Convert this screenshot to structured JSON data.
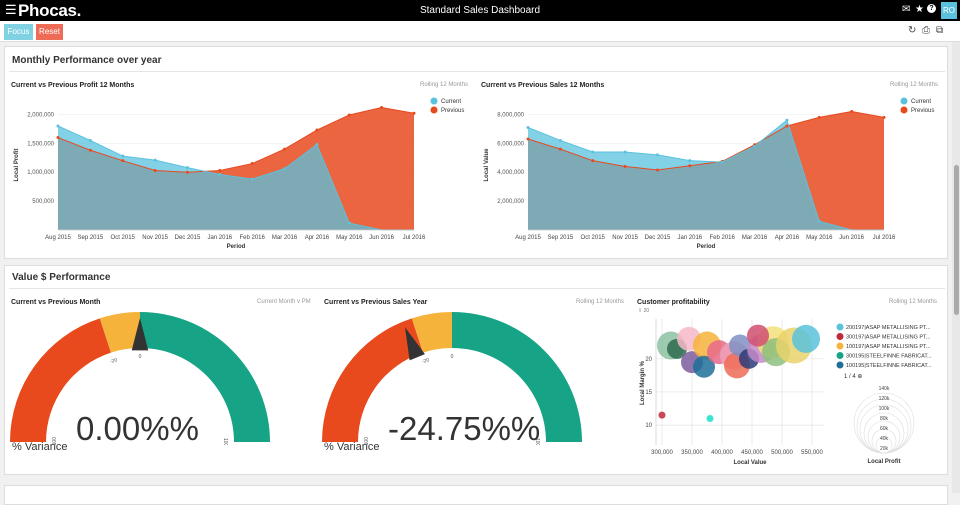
{
  "app": {
    "logo": "Phocas.",
    "title": "Standard Sales Dashboard",
    "menu_icon": "hamburger-icon",
    "avatar": "RO",
    "icons": [
      "chat-icon",
      "star-icon",
      "help-icon",
      "gear-icon"
    ]
  },
  "toolbar": {
    "focus_label": "Focus",
    "reset_label": "Reset",
    "focus_color": "#80d2e3",
    "reset_color": "#ee6b56",
    "icons": [
      "refresh-icon",
      "print-icon",
      "copy-icon"
    ]
  },
  "colors": {
    "current": "#5ac2dd",
    "previous": "#e84a1e",
    "gauge_red": "#e84a1e",
    "gauge_yellow": "#f6b33b",
    "gauge_green": "#17a486"
  },
  "section1": {
    "title": "Monthly Performance over year"
  },
  "section2": {
    "title": "Value $ Performance"
  },
  "chart_data": [
    {
      "type": "area",
      "title": "Current vs Previous Profit 12 Months",
      "subtitle": "Rolling 12 Months",
      "xlabel": "Period",
      "ylabel": "Local Profit",
      "categories": [
        "Aug 2015",
        "Sep 2015",
        "Oct 2015",
        "Nov 2015",
        "Dec 2015",
        "Jan 2016",
        "Feb 2016",
        "Mar 2016",
        "Apr 2016",
        "May 2016",
        "Jun 2016",
        "Jul 2016"
      ],
      "yticks": [
        "500,000",
        "1,000,000",
        "1,500,000",
        "2,000,000"
      ],
      "ytick_values": [
        500000,
        1000000,
        1500000,
        2000000
      ],
      "ylim": [
        0,
        2250000
      ],
      "legend": "top-right",
      "series": [
        {
          "name": "Current",
          "values": [
            1800000,
            1550000,
            1280000,
            1210000,
            1080000,
            960000,
            880000,
            1060000,
            1480000,
            120000,
            0,
            0
          ]
        },
        {
          "name": "Previous",
          "values": [
            1600000,
            1380000,
            1200000,
            1030000,
            1000000,
            1030000,
            1150000,
            1400000,
            1730000,
            1990000,
            2120000,
            2020000
          ]
        }
      ]
    },
    {
      "type": "area",
      "title": "Current vs Previous Sales 12 Months",
      "subtitle": "Rolling 12 Months",
      "xlabel": "Period",
      "ylabel": "Local Value",
      "categories": [
        "Aug 2015",
        "Sep 2015",
        "Oct 2015",
        "Nov 2015",
        "Dec 2015",
        "Jan 2016",
        "Feb 2016",
        "Mar 2016",
        "Apr 2016",
        "May 2016",
        "Jun 2016",
        "Jul 2016"
      ],
      "yticks": [
        "2,000,000",
        "4,000,000",
        "6,000,000",
        "8,000,000"
      ],
      "ytick_values": [
        2000000,
        4000000,
        6000000,
        8000000
      ],
      "ylim": [
        0,
        9000000
      ],
      "legend": "top-right",
      "series": [
        {
          "name": "Current",
          "values": [
            7100000,
            6200000,
            5400000,
            5400000,
            5200000,
            4800000,
            4700000,
            5800000,
            7600000,
            600000,
            0,
            0
          ]
        },
        {
          "name": "Previous",
          "values": [
            6300000,
            5600000,
            4800000,
            4400000,
            4150000,
            4450000,
            4750000,
            5900000,
            7200000,
            7800000,
            8200000,
            7800000
          ]
        }
      ]
    },
    {
      "type": "gauge",
      "title": "Current vs Previous Month",
      "subtitle": "Current Month v PM",
      "value": 0.0,
      "value_label": "0.00%%",
      "caption": "% Variance",
      "range": [
        -100,
        100
      ],
      "bands": [
        {
          "from": -100,
          "to": -20,
          "color": "#e84a1e"
        },
        {
          "from": -20,
          "to": 0,
          "color": "#f6b33b"
        },
        {
          "from": 0,
          "to": 100,
          "color": "#17a486"
        }
      ],
      "tick_labels": [
        "-100",
        "-20",
        "0",
        "100"
      ]
    },
    {
      "type": "gauge",
      "title": "Current vs Previous Sales Year",
      "subtitle": "Rolling 12 Months",
      "value": -24.75,
      "value_label": "-24.75%%",
      "caption": "% Variance",
      "range": [
        -100,
        100
      ],
      "bands": [
        {
          "from": -100,
          "to": -20,
          "color": "#e84a1e"
        },
        {
          "from": -20,
          "to": 0,
          "color": "#f6b33b"
        },
        {
          "from": 0,
          "to": 100,
          "color": "#17a486"
        }
      ],
      "tick_labels": [
        "-100",
        "-20",
        "0",
        "100"
      ]
    },
    {
      "type": "scatter",
      "title": "Customer profitability",
      "subtitle": "Rolling 12 Months",
      "xlabel": "Local Value",
      "ylabel": "Local Margin %",
      "xticks": [
        "300,000",
        "350,000",
        "400,000",
        "450,000",
        "500,000",
        "550,000"
      ],
      "xtick_values": [
        300000,
        350000,
        400000,
        450000,
        500000,
        550000
      ],
      "yticks": [
        "10",
        "15",
        "20"
      ],
      "ytick_values": [
        10,
        15,
        20
      ],
      "top_tick": "20",
      "xlim": [
        290000,
        570000
      ],
      "ylim": [
        7,
        26
      ],
      "size_legend_title": "Local Profit",
      "size_legend": [
        "140k",
        "120k",
        "100k",
        "80k",
        "60k",
        "40k",
        "20k"
      ],
      "pagination": "1 / 4",
      "legend": [
        {
          "name": "200197|ASAP METALLISING PT...",
          "color": "#5ac2dd"
        },
        {
          "name": "300197|ASAP METALLISING PT...",
          "color": "#c0293b"
        },
        {
          "name": "100197|ASAP METALLISING PT...",
          "color": "#f6b33b"
        },
        {
          "name": "300195|STEELFINNE FABRICAT...",
          "color": "#17a486"
        },
        {
          "name": "100195|STEELFINNE FABRICAT...",
          "color": "#1f6f99"
        }
      ],
      "points": [
        {
          "x": 315000,
          "y": 22,
          "r": 14,
          "color": "#8dc1a1"
        },
        {
          "x": 325000,
          "y": 21.5,
          "r": 10,
          "color": "#2e6b4f"
        },
        {
          "x": 345000,
          "y": 23,
          "r": 12,
          "color": "#f7b9c8"
        },
        {
          "x": 350000,
          "y": 19.5,
          "r": 11,
          "color": "#7d5d9e"
        },
        {
          "x": 375000,
          "y": 22,
          "r": 14,
          "color": "#f6b33b"
        },
        {
          "x": 370000,
          "y": 18.8,
          "r": 11,
          "color": "#1f6f99"
        },
        {
          "x": 395000,
          "y": 21,
          "r": 12,
          "color": "#e66a89"
        },
        {
          "x": 420000,
          "y": 20.5,
          "r": 14,
          "color": "#f0a0b8"
        },
        {
          "x": 425000,
          "y": 19,
          "r": 13,
          "color": "#ee6b56"
        },
        {
          "x": 430000,
          "y": 22,
          "r": 11,
          "color": "#7e8fc3"
        },
        {
          "x": 445000,
          "y": 20,
          "r": 10,
          "color": "#2b3c7a"
        },
        {
          "x": 465000,
          "y": 21.5,
          "r": 14,
          "color": "#c38ac7"
        },
        {
          "x": 485000,
          "y": 22.5,
          "r": 16,
          "color": "#f3e07a"
        },
        {
          "x": 490000,
          "y": 21,
          "r": 14,
          "color": "#8dbf7c"
        },
        {
          "x": 520000,
          "y": 22,
          "r": 18,
          "color": "#e9d26c"
        },
        {
          "x": 540000,
          "y": 23,
          "r": 14,
          "color": "#5ac2dd"
        },
        {
          "x": 460000,
          "y": 23.5,
          "r": 11,
          "color": "#d04f72"
        },
        {
          "x": 300000,
          "y": 11.5,
          "r": 3.5,
          "color": "#c0293b"
        },
        {
          "x": 380000,
          "y": 11,
          "r": 3.5,
          "color": "#14e0c8"
        }
      ]
    }
  ]
}
